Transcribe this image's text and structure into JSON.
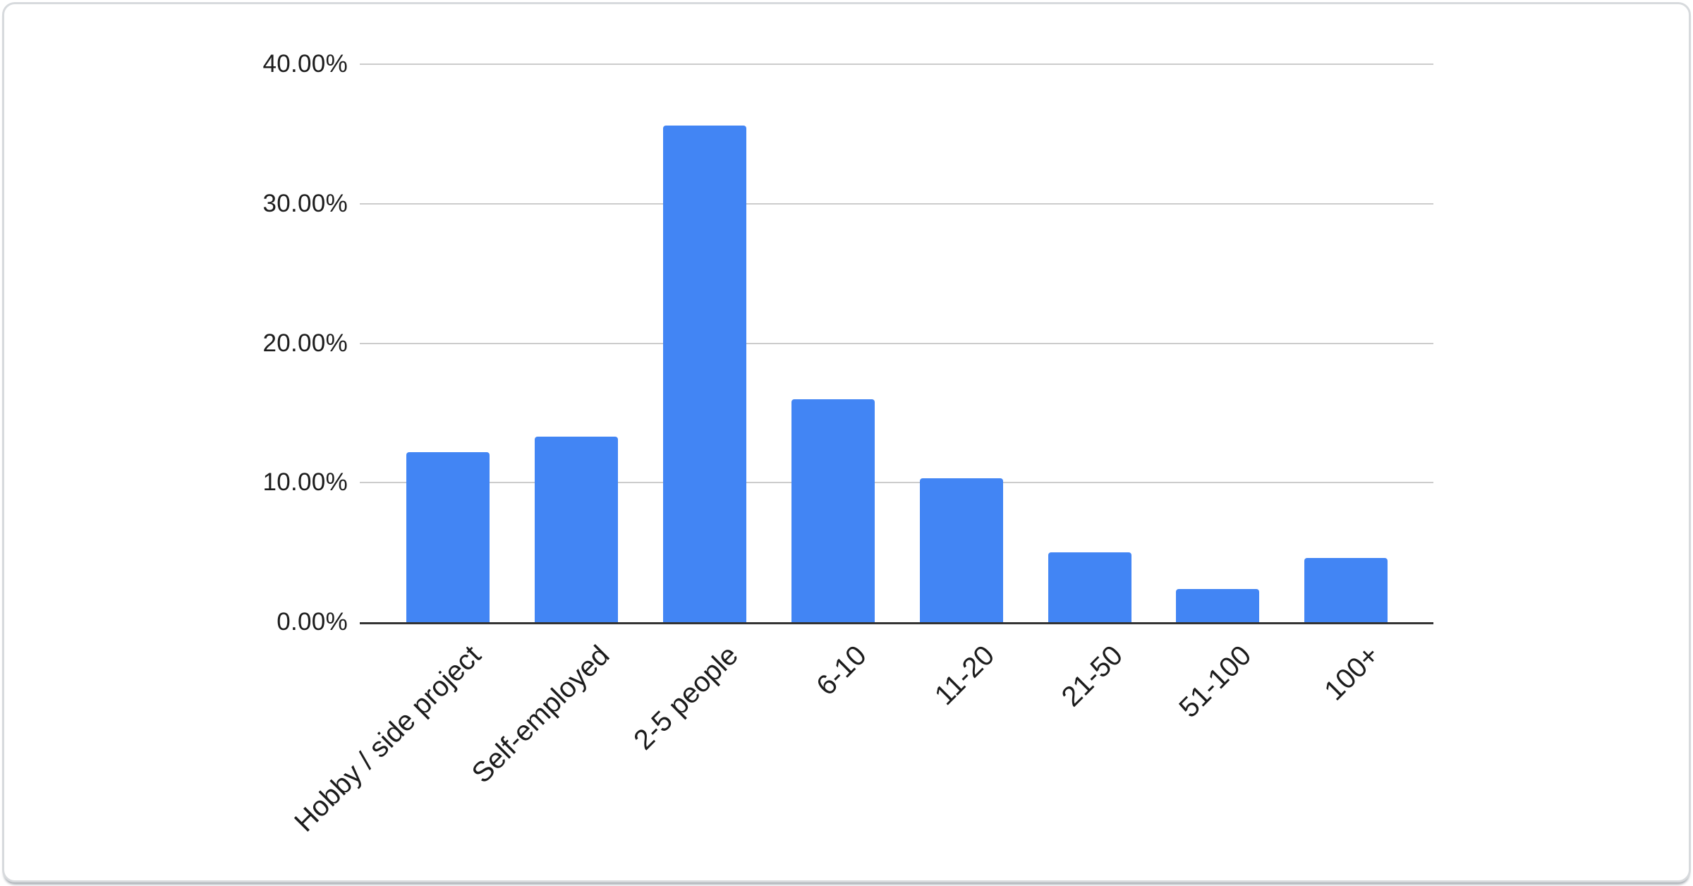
{
  "card": {
    "background": "#ffffff",
    "border_color": "#d7dadd"
  },
  "chart_data": {
    "type": "bar",
    "categories": [
      "Hobby / side project",
      "Self-employed",
      "2-5 people",
      "6-10",
      "11-20",
      "21-50",
      "51-100",
      "100+"
    ],
    "values": [
      12.2,
      13.3,
      35.6,
      16.0,
      10.3,
      5.0,
      2.4,
      4.6
    ],
    "title": "",
    "xlabel": "",
    "ylabel": "",
    "ylim": [
      0,
      40
    ],
    "yticks": [
      0,
      10,
      20,
      30,
      40
    ],
    "ytick_labels": [
      "0.00%",
      "10.00%",
      "20.00%",
      "30.00%",
      "40.00%"
    ],
    "grid": true,
    "legend": false,
    "bar_color": "#4285f4",
    "gridline_color": "#cccccc",
    "axis_line_color": "#333333",
    "label_color": "#1c1c1c"
  }
}
